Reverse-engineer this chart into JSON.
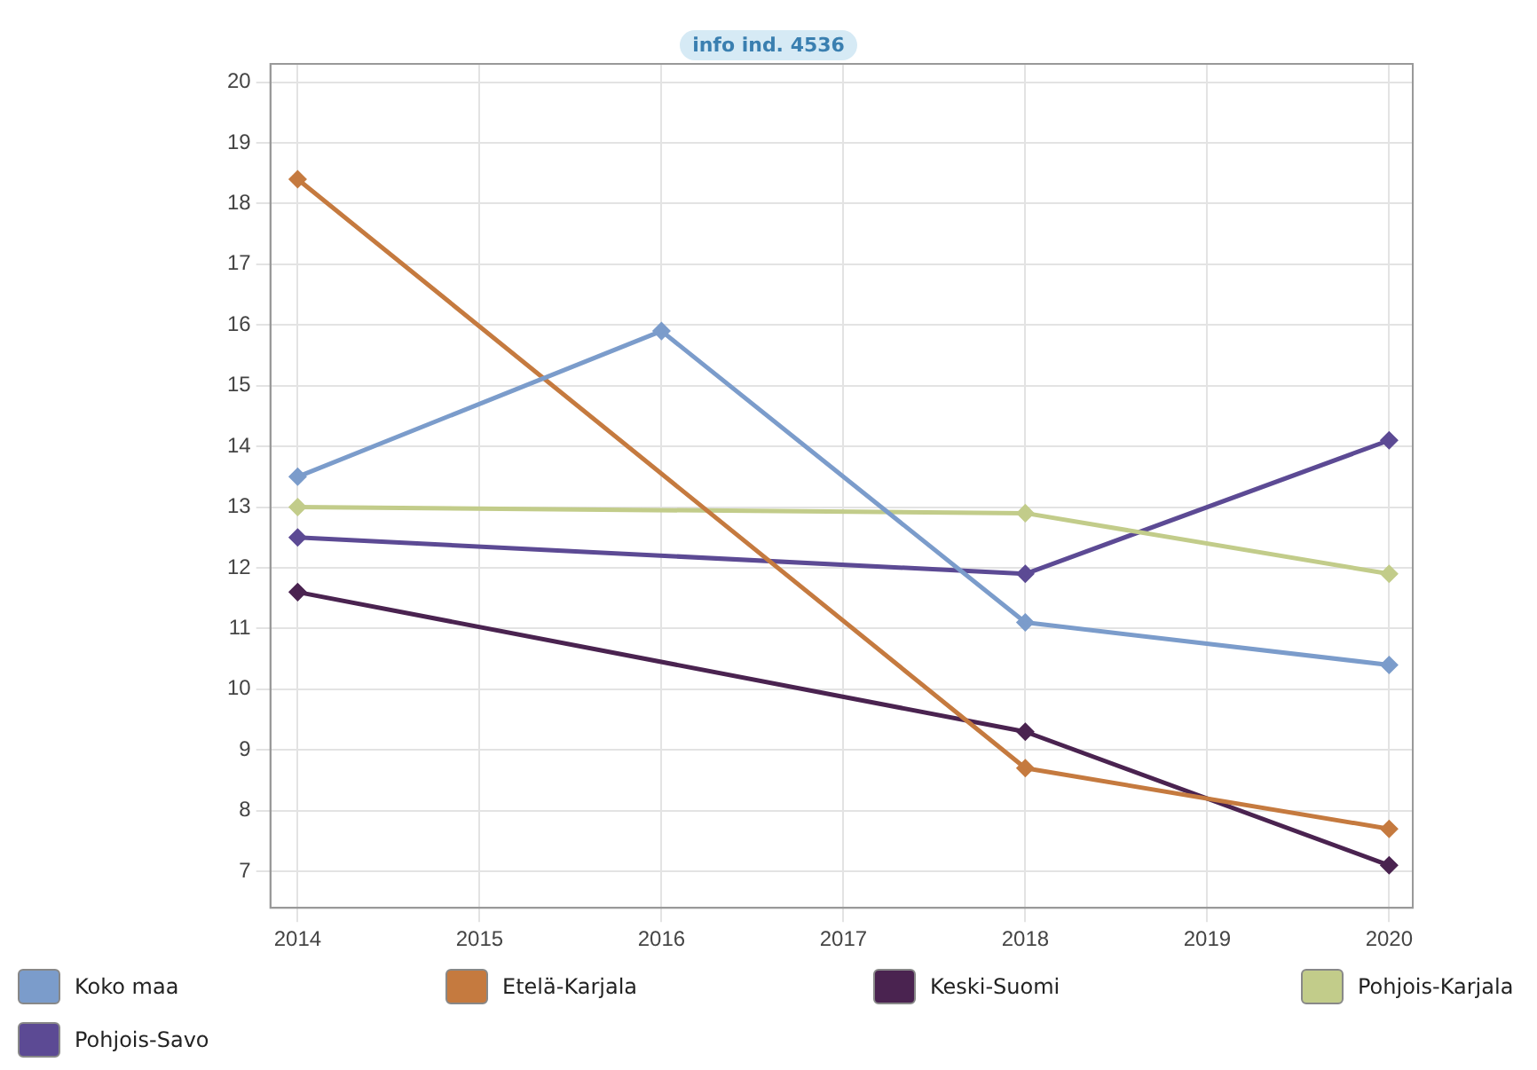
{
  "chart_data": {
    "type": "line",
    "annotations": [
      "info ind. 4536"
    ],
    "xlim": [
      2013.85,
      2020.13
    ],
    "xticks": [
      2014,
      2015,
      2016,
      2017,
      2018,
      2019,
      2020
    ],
    "ylim": [
      6.4,
      20.3
    ],
    "yticks": [
      7,
      8,
      9,
      10,
      11,
      12,
      13,
      14,
      15,
      16,
      17,
      18,
      19,
      20
    ],
    "grid": true,
    "legend": "bottom",
    "marker": "diamond",
    "line_style": "solid",
    "series": [
      {
        "name": "Koko maa",
        "color": "#7b9ccb",
        "x": [
          2014,
          2016,
          2018,
          2020
        ],
        "values": [
          13.5,
          15.9,
          11.1,
          10.4
        ]
      },
      {
        "name": "Etelä-Karjala",
        "color": "#c57a3f",
        "x": [
          2014,
          2018,
          2020
        ],
        "values": [
          18.4,
          8.7,
          7.7
        ]
      },
      {
        "name": "Keski-Suomi",
        "color": "#4a2350",
        "x": [
          2014,
          2018,
          2020
        ],
        "values": [
          11.6,
          9.3,
          7.1
        ]
      },
      {
        "name": "Pohjois-Karjala",
        "color": "#c2cc8a",
        "x": [
          2014,
          2018,
          2020
        ],
        "values": [
          13.0,
          12.9,
          11.9
        ]
      },
      {
        "name": "Pohjois-Savo",
        "color": "#5c4a94",
        "x": [
          2014,
          2018,
          2020
        ],
        "values": [
          12.5,
          11.9,
          14.1
        ]
      }
    ]
  }
}
